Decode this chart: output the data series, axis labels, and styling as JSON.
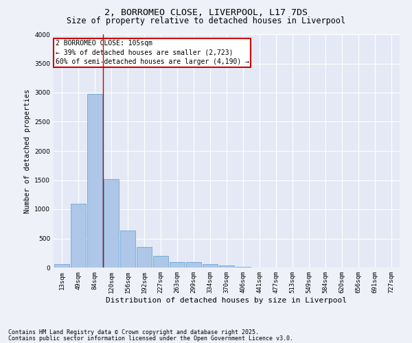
{
  "title": "2, BORROMEO CLOSE, LIVERPOOL, L17 7DS",
  "subtitle": "Size of property relative to detached houses in Liverpool",
  "xlabel": "Distribution of detached houses by size in Liverpool",
  "ylabel": "Number of detached properties",
  "categories": [
    "13sqm",
    "49sqm",
    "84sqm",
    "120sqm",
    "156sqm",
    "192sqm",
    "227sqm",
    "263sqm",
    "299sqm",
    "334sqm",
    "370sqm",
    "406sqm",
    "441sqm",
    "477sqm",
    "513sqm",
    "549sqm",
    "584sqm",
    "620sqm",
    "656sqm",
    "691sqm",
    "727sqm"
  ],
  "values": [
    55,
    1100,
    2980,
    1520,
    635,
    350,
    205,
    100,
    95,
    55,
    30,
    15,
    5,
    2,
    1,
    0,
    0,
    0,
    0,
    0,
    0
  ],
  "bar_color": "#aec6e8",
  "bar_edge_color": "#5a9fd4",
  "vline_x_index": 2,
  "vline_color": "#cc0000",
  "ylim": [
    0,
    4000
  ],
  "yticks": [
    0,
    500,
    1000,
    1500,
    2000,
    2500,
    3000,
    3500,
    4000
  ],
  "annotation_title": "2 BORROMEO CLOSE: 105sqm",
  "annotation_line1": "← 39% of detached houses are smaller (2,723)",
  "annotation_line2": "60% of semi-detached houses are larger (4,190) →",
  "annotation_box_color": "#cc0000",
  "footnote1": "Contains HM Land Registry data © Crown copyright and database right 2025.",
  "footnote2": "Contains public sector information licensed under the Open Government Licence v3.0.",
  "bg_color": "#eef1f8",
  "plot_bg_color": "#e4e9f5",
  "grid_color": "#ffffff",
  "title_fontsize": 9.5,
  "subtitle_fontsize": 8.5,
  "xlabel_fontsize": 8,
  "ylabel_fontsize": 7.5,
  "tick_fontsize": 6.5,
  "annotation_fontsize": 7,
  "footnote_fontsize": 6
}
